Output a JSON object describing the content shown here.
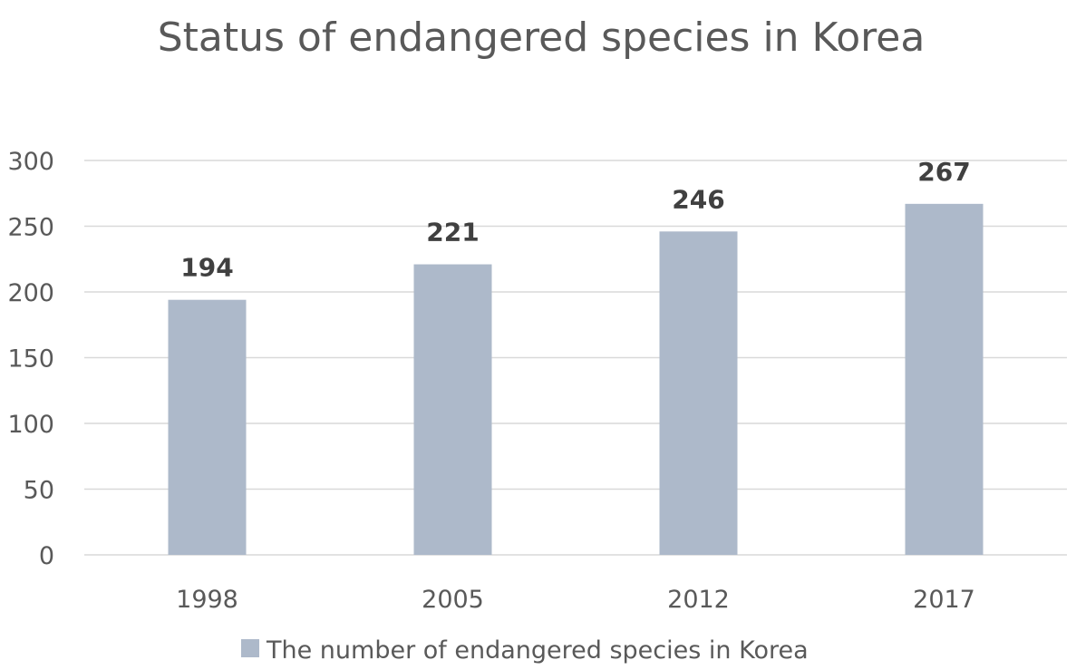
{
  "chart_data": {
    "type": "bar",
    "title": "Status of endangered species in Korea",
    "categories": [
      "1998",
      "2005",
      "2012",
      "2017"
    ],
    "series": [
      {
        "name": "The number of endangered species in Korea",
        "values": [
          194,
          221,
          246,
          267
        ],
        "color": "#adb9ca"
      }
    ],
    "data_labels": [
      "194",
      "221",
      "246",
      "267"
    ],
    "ylim": [
      0,
      300
    ],
    "yticks": [
      "0",
      "50",
      "100",
      "150",
      "200",
      "250",
      "300"
    ],
    "grid": true,
    "legend_position": "bottom"
  }
}
